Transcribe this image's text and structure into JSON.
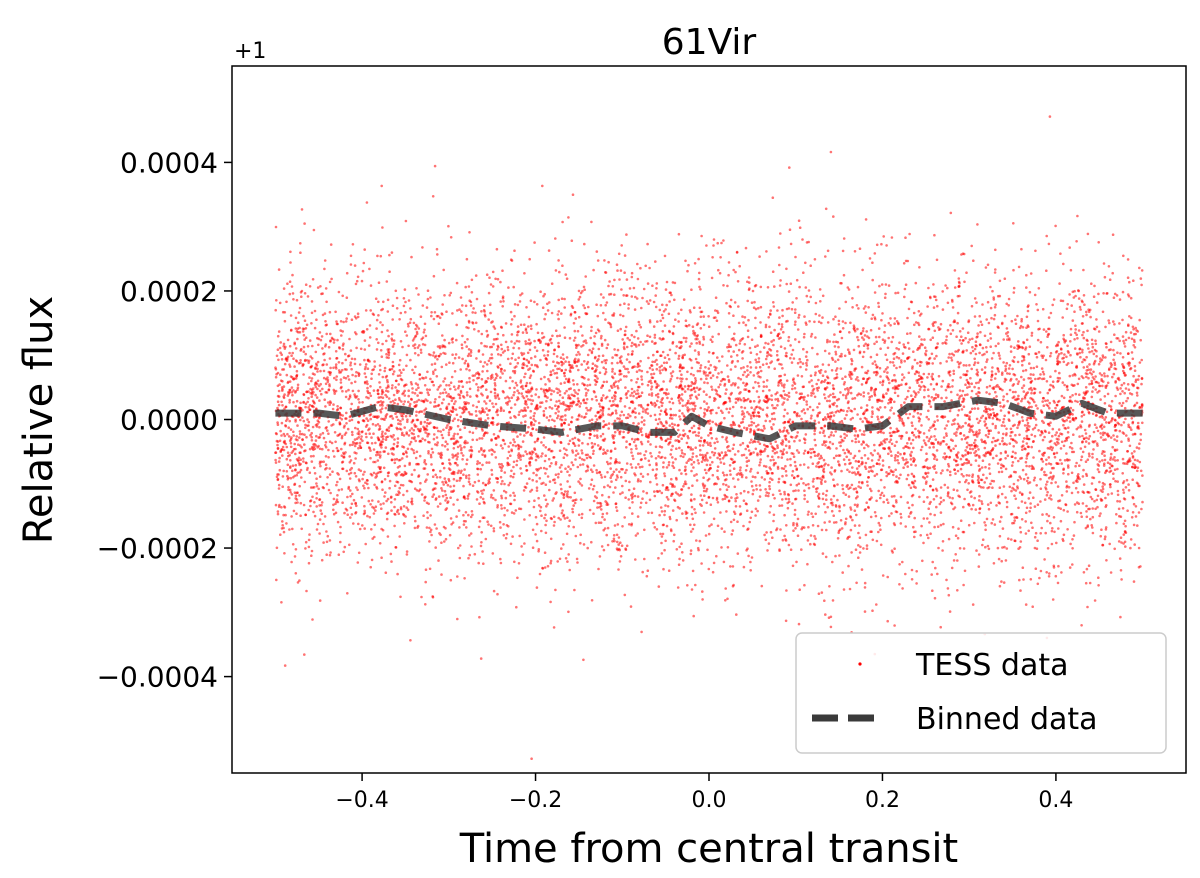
{
  "chart_data": {
    "type": "scatter",
    "title": "61Vir",
    "xlabel": "Time from central transit",
    "ylabel": "Relative flux",
    "offset_label": "+1",
    "xlim": [
      -0.55,
      0.55
    ],
    "ylim": [
      -0.00055,
      0.00055
    ],
    "x_ticks": [
      -0.4,
      -0.2,
      0.0,
      0.2,
      0.4
    ],
    "x_tick_labels": [
      "−0.4",
      "−0.2",
      "0.0",
      "0.2",
      "0.4"
    ],
    "y_ticks": [
      0.0004,
      0.0002,
      0.0,
      -0.0002,
      -0.0004
    ],
    "y_tick_labels": [
      "0.0004",
      "0.0002",
      "0.0000",
      "−0.0002",
      "−0.0004"
    ],
    "legend_position": "lower-right",
    "series": [
      {
        "name": "TESS data",
        "kind": "scatter",
        "color": "#ff0000",
        "point_count": 9000,
        "x_range": [
          -0.5,
          0.5
        ],
        "mean": 0.0,
        "std": 0.00011
      },
      {
        "name": "Binned data",
        "kind": "line",
        "style": "dashed",
        "color": "#3a3a3a",
        "x": [
          -0.5,
          -0.45,
          -0.42,
          -0.38,
          -0.35,
          -0.3,
          -0.25,
          -0.2,
          -0.17,
          -0.13,
          -0.1,
          -0.07,
          -0.04,
          -0.02,
          0.0,
          0.03,
          0.07,
          0.1,
          0.14,
          0.17,
          0.2,
          0.23,
          0.27,
          0.31,
          0.34,
          0.37,
          0.4,
          0.43,
          0.46,
          0.5
        ],
        "y": [
          1e-05,
          1e-05,
          5e-06,
          2e-05,
          1.5e-05,
          0.0,
          -1e-05,
          -1.5e-05,
          -2e-05,
          -1e-05,
          -1e-05,
          -2e-05,
          -2e-05,
          5e-06,
          -1e-05,
          -2e-05,
          -3e-05,
          -1e-05,
          -1e-05,
          -1.5e-05,
          -1e-05,
          2e-05,
          2e-05,
          3e-05,
          2.5e-05,
          1e-05,
          5e-06,
          2.5e-05,
          1e-05,
          1e-05
        ]
      }
    ]
  }
}
